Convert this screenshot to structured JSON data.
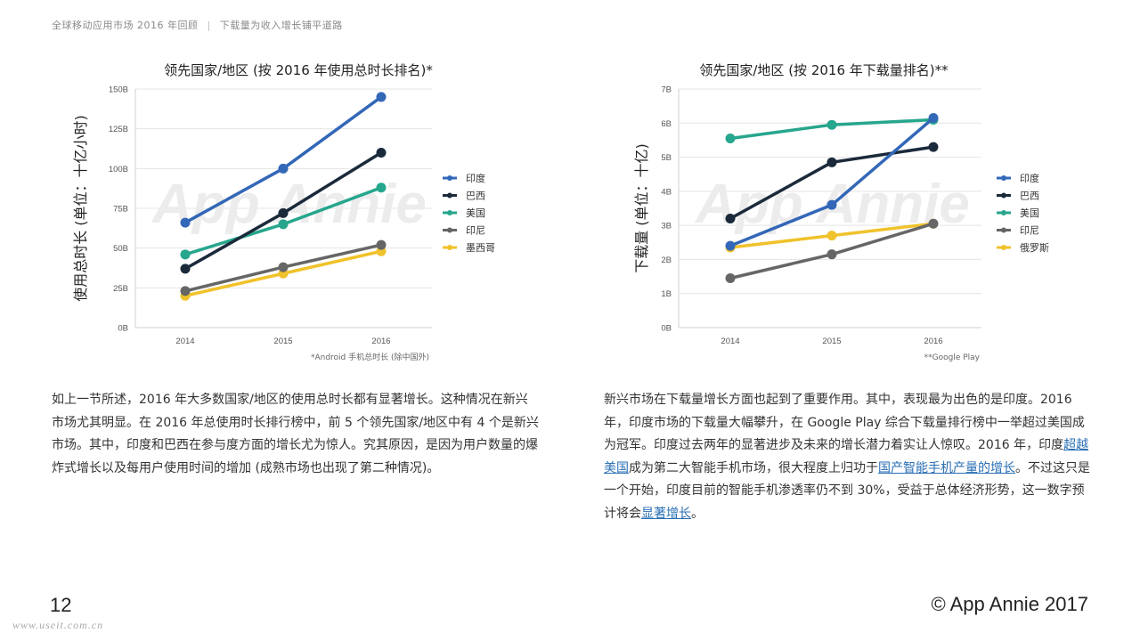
{
  "header": {
    "report_title": "全球移动应用市场 2016 年回顾",
    "separator": "|",
    "section_title": "下载量为收入增长铺平道路"
  },
  "watermark_text": "App Annie",
  "chart_data": [
    {
      "type": "line",
      "title": "领先国家/地区 (按 2016 年使用总时长排名)*",
      "ylabel": "使用总时长 (单位：十亿小时)",
      "xlabel": "",
      "x": [
        "2014",
        "2015",
        "2016"
      ],
      "ylim": [
        0,
        150
      ],
      "yticks": [
        0,
        25,
        50,
        75,
        100,
        125,
        150
      ],
      "ytick_labels": [
        "0B",
        "25B",
        "50B",
        "75B",
        "100B",
        "125B",
        "150B"
      ],
      "grid": true,
      "legend_position": "right",
      "footnote": "*Android 手机总时长 (除中国外)",
      "series": [
        {
          "name": "印度",
          "color": "#3367b7",
          "values": [
            66,
            100,
            145
          ]
        },
        {
          "name": "巴西",
          "color": "#1b2a3b",
          "values": [
            37,
            72,
            110
          ]
        },
        {
          "name": "美国",
          "color": "#26a68d",
          "values": [
            46,
            65,
            88
          ]
        },
        {
          "name": "印尼",
          "color": "#666666",
          "values": [
            23,
            38,
            52
          ]
        },
        {
          "name": "墨西哥",
          "color": "#f0c22b",
          "values": [
            20,
            34,
            48
          ]
        }
      ]
    },
    {
      "type": "line",
      "title": "领先国家/地区 (按 2016 年下载量排名)**",
      "ylabel": "下载量 (单位：十亿)",
      "xlabel": "",
      "x": [
        "2014",
        "2015",
        "2016"
      ],
      "ylim": [
        0,
        7
      ],
      "yticks": [
        0,
        1,
        2,
        3,
        4,
        5,
        6,
        7
      ],
      "ytick_labels": [
        "0B",
        "1B",
        "2B",
        "3B",
        "4B",
        "5B",
        "6B",
        "7B"
      ],
      "grid": true,
      "legend_position": "right",
      "footnote": "**Google Play",
      "series": [
        {
          "name": "印度",
          "color": "#3367b7",
          "values": [
            2.4,
            3.6,
            6.15
          ]
        },
        {
          "name": "巴西",
          "color": "#1b2a3b",
          "values": [
            3.2,
            4.85,
            5.3
          ]
        },
        {
          "name": "美国",
          "color": "#26a68d",
          "values": [
            5.55,
            5.95,
            6.1
          ]
        },
        {
          "name": "印尼",
          "color": "#666666",
          "values": [
            1.45,
            2.15,
            3.05
          ]
        },
        {
          "name": "俄罗斯",
          "color": "#f0c22b",
          "values": [
            2.35,
            2.7,
            3.05
          ]
        }
      ]
    }
  ],
  "body": {
    "left": "如上一节所述，2016 年大多数国家/地区的使用总时长都有显著增长。这种情况在新兴市场尤其明显。在 2016 年总使用时长排行榜中，前 5 个领先国家/地区中有 4 个是新兴市场。其中，印度和巴西在参与度方面的增长尤为惊人。究其原因，是因为用户数量的爆炸式增长以及每用户使用时间的增加 (成熟市场也出现了第二种情况)。",
    "right_1": "新兴市场在下载量增长方面也起到了重要作用。其中，表现最为出色的是印度。2016 年，印度市场的下载量大幅攀升，在 Google Play 综合下载量排行榜中一举超过美国成为冠军。印度过去两年的显著进步及未来的增长潜力着实让人惊叹。2016 年，印度",
    "link_1": "超越美国",
    "right_2": "成为第二大智能手机市场，很大程度上归功于",
    "link_2": "国产智能手机产量的增长",
    "right_3": "。不过这只是一个开始，印度目前的智能手机渗透率仍不到 30%，受益于总体经济形势，这一数字预计将会",
    "link_3": "显著增长",
    "right_4": "。"
  },
  "footer": {
    "page_number": "12",
    "copyright": "© App Annie 2017",
    "site_watermark": "www.useit.com.cn"
  }
}
